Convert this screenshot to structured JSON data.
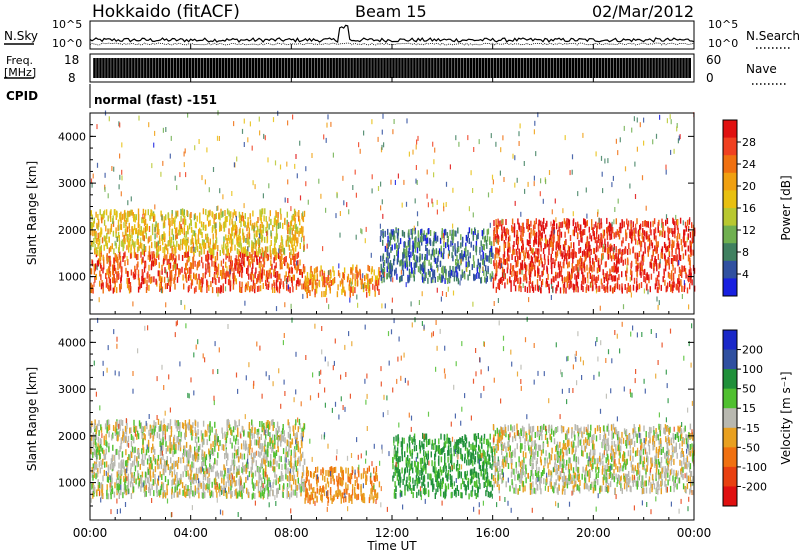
{
  "header": {
    "station": "Hokkaido (fitACF)",
    "beam": "Beam 15",
    "date": "02/Mar/2012"
  },
  "noise_panel": {
    "left_label": "N.Sky",
    "right_label": "N.Search",
    "left_ticks": [
      "10^5",
      "10^0"
    ],
    "right_ticks": [
      "10^5",
      "10^0"
    ]
  },
  "freq_panel": {
    "left_label_line1": "Freq.",
    "left_label_line2": "[MHz]",
    "right_label": "Nave",
    "left_ticks": [
      "18",
      "8"
    ],
    "right_ticks": [
      "60",
      "0"
    ]
  },
  "cpid_panel": {
    "label": "CPID",
    "text": "normal (fast) -151"
  },
  "power_colorbar": {
    "label": "Power [dB]",
    "ticks": [
      "28",
      "24",
      "20",
      "16",
      "12",
      "8",
      "4"
    ],
    "colors": [
      "#e01010",
      "#f04020",
      "#f07010",
      "#f0a010",
      "#e8c010",
      "#b8c830",
      "#70b050",
      "#408060",
      "#3050a0",
      "#1820e0"
    ]
  },
  "velocity_colorbar": {
    "label": "Velocity [m s⁻¹]",
    "ticks": [
      "200",
      "100",
      "50",
      "15",
      "-15",
      "-50",
      "-100",
      "-200"
    ],
    "colors": [
      "#1a28c8",
      "#3050a0",
      "#20903a",
      "#50c030",
      "#b8b8b0",
      "#e8a020",
      "#f07010",
      "#e84010",
      "#e01010"
    ]
  },
  "x_axis": {
    "label": "Time UT",
    "ticks": [
      "00:00",
      "04:00",
      "08:00",
      "12:00",
      "16:00",
      "20:00",
      "00:00"
    ]
  },
  "chart_data": [
    {
      "type": "heatmap",
      "title": "Power",
      "ylabel": "Slant Range [km]",
      "xlabel": "Time UT",
      "y_ticks": [
        1000,
        2000,
        3000,
        4000
      ],
      "ylim": [
        200,
        4500
      ],
      "xlim_hours": [
        0,
        24
      ],
      "colorbar": "Power [dB]",
      "regions": [
        {
          "t0": 0.0,
          "t1": 8.5,
          "r0": 700,
          "r1": 1500,
          "value_db": 26
        },
        {
          "t0": 0.0,
          "t1": 8.5,
          "r0": 1500,
          "r1": 2400,
          "value_db": 18
        },
        {
          "t0": 8.5,
          "t1": 11.5,
          "r0": 600,
          "r1": 1200,
          "value_db": 22
        },
        {
          "t0": 11.5,
          "t1": 16.0,
          "r0": 900,
          "r1": 2000,
          "value_db": 8
        },
        {
          "t0": 16.0,
          "t1": 24.0,
          "r0": 700,
          "r1": 2200,
          "value_db": 28
        }
      ]
    },
    {
      "type": "heatmap",
      "title": "Velocity",
      "ylabel": "Slant Range [km]",
      "xlabel": "Time UT",
      "y_ticks": [
        1000,
        2000,
        3000,
        4000
      ],
      "ylim": [
        200,
        4500
      ],
      "xlim_hours": [
        0,
        24
      ],
      "colorbar": "Velocity [m s⁻¹]",
      "regions": [
        {
          "t0": 0.0,
          "t1": 8.5,
          "r0": 700,
          "r1": 2300,
          "value_ms": 0
        },
        {
          "t0": 8.5,
          "t1": 11.5,
          "r0": 600,
          "r1": 1300,
          "value_ms": -50
        },
        {
          "t0": 12.0,
          "t1": 16.0,
          "r0": 700,
          "r1": 2000,
          "value_ms": 60
        },
        {
          "t0": 16.0,
          "t1": 24.0,
          "r0": 800,
          "r1": 2200,
          "value_ms": 0
        }
      ]
    }
  ]
}
